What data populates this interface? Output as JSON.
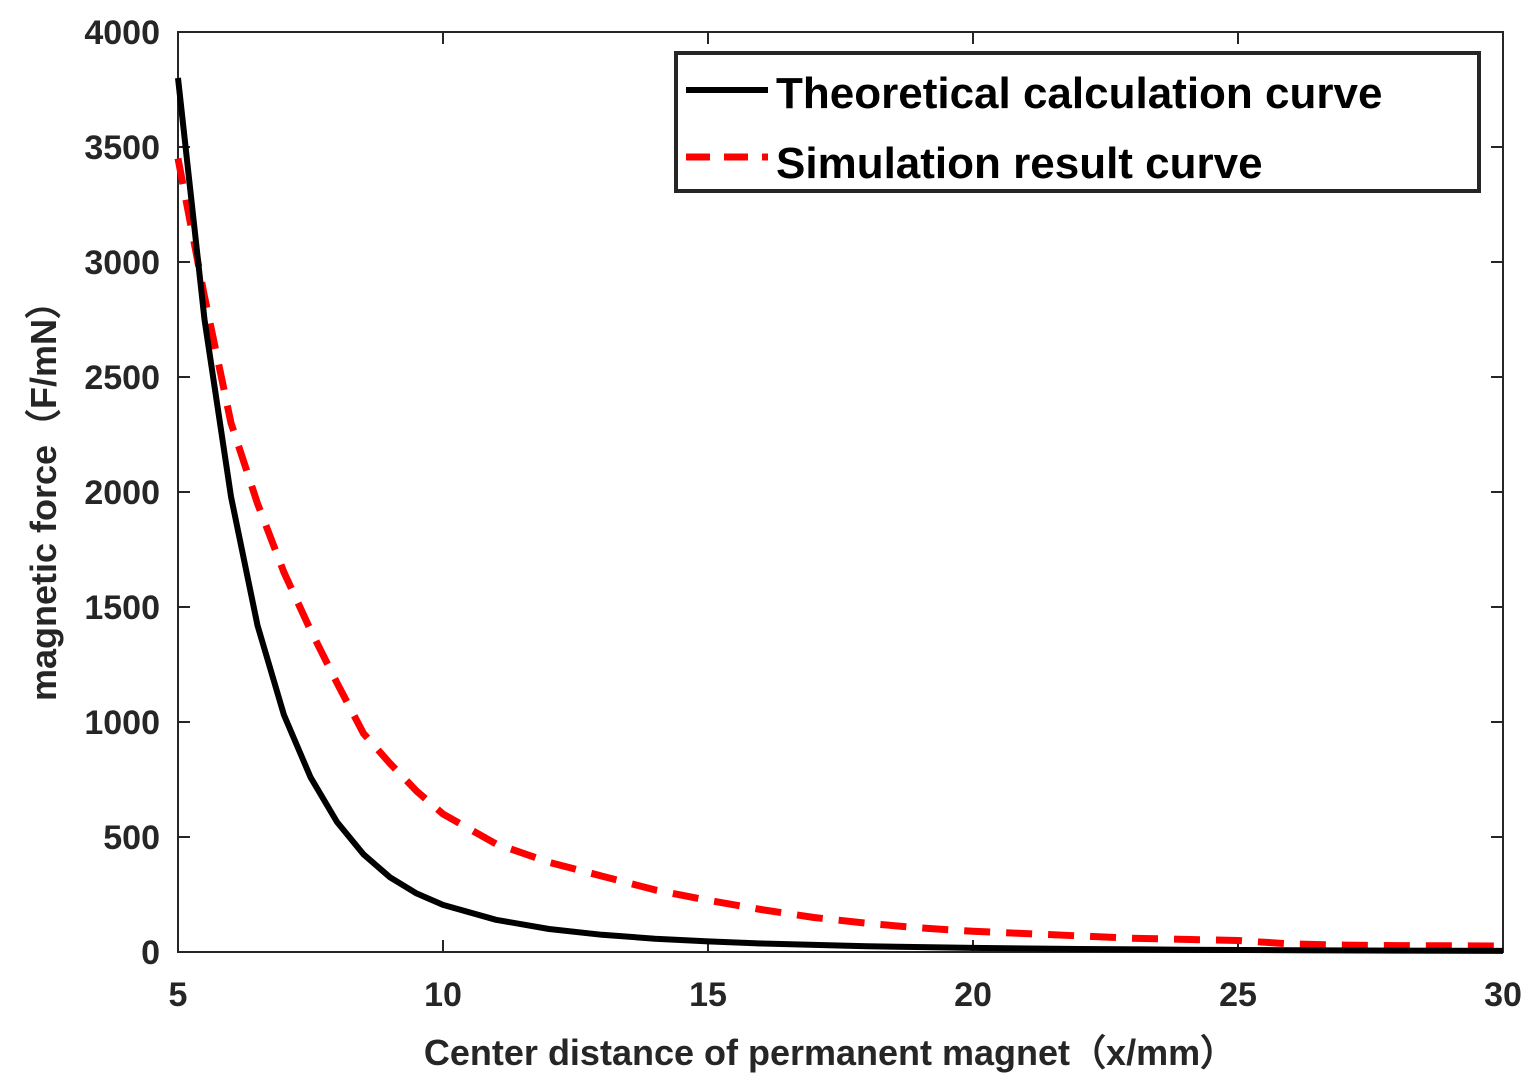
{
  "chart_data": {
    "type": "line",
    "title": "",
    "xlabel": "Center distance of permanent magnet（x/mm）",
    "ylabel": "magnetic force（F/mN）",
    "xlim": [
      5,
      30
    ],
    "ylim": [
      0,
      4000
    ],
    "xticks": [
      5,
      10,
      15,
      20,
      25,
      30
    ],
    "yticks": [
      0,
      500,
      1000,
      1500,
      2000,
      2500,
      3000,
      3500,
      4000
    ],
    "grid": false,
    "legend_position": "top-right",
    "series": [
      {
        "name": "Theoretical calculation curve",
        "color": "#000000",
        "style": "solid",
        "x": [
          5,
          5.5,
          6,
          6.5,
          7,
          7.5,
          8,
          8.5,
          9,
          9.5,
          10,
          11,
          12,
          13,
          14,
          15,
          16,
          18,
          20,
          22,
          24,
          26,
          28,
          30
        ],
        "y": [
          3800,
          2750,
          1980,
          1420,
          1030,
          760,
          565,
          425,
          325,
          255,
          205,
          140,
          100,
          75,
          58,
          46,
          37,
          25,
          18,
          13,
          10,
          8,
          6,
          5
        ]
      },
      {
        "name": "Simulation result curve",
        "color": "#ff0000",
        "style": "dashed",
        "x": [
          5,
          5.5,
          6,
          6.5,
          7,
          7.5,
          8,
          8.5,
          9,
          9.5,
          10,
          11,
          12,
          13,
          14,
          15,
          16,
          17,
          18,
          19,
          20,
          21,
          22,
          23,
          24,
          25,
          26,
          27,
          28,
          29,
          30
        ],
        "y": [
          3450,
          2850,
          2300,
          1950,
          1650,
          1400,
          1170,
          950,
          820,
          700,
          600,
          470,
          390,
          330,
          270,
          225,
          185,
          150,
          125,
          105,
          90,
          80,
          70,
          60,
          55,
          50,
          35,
          30,
          28,
          27,
          26
        ]
      }
    ]
  }
}
